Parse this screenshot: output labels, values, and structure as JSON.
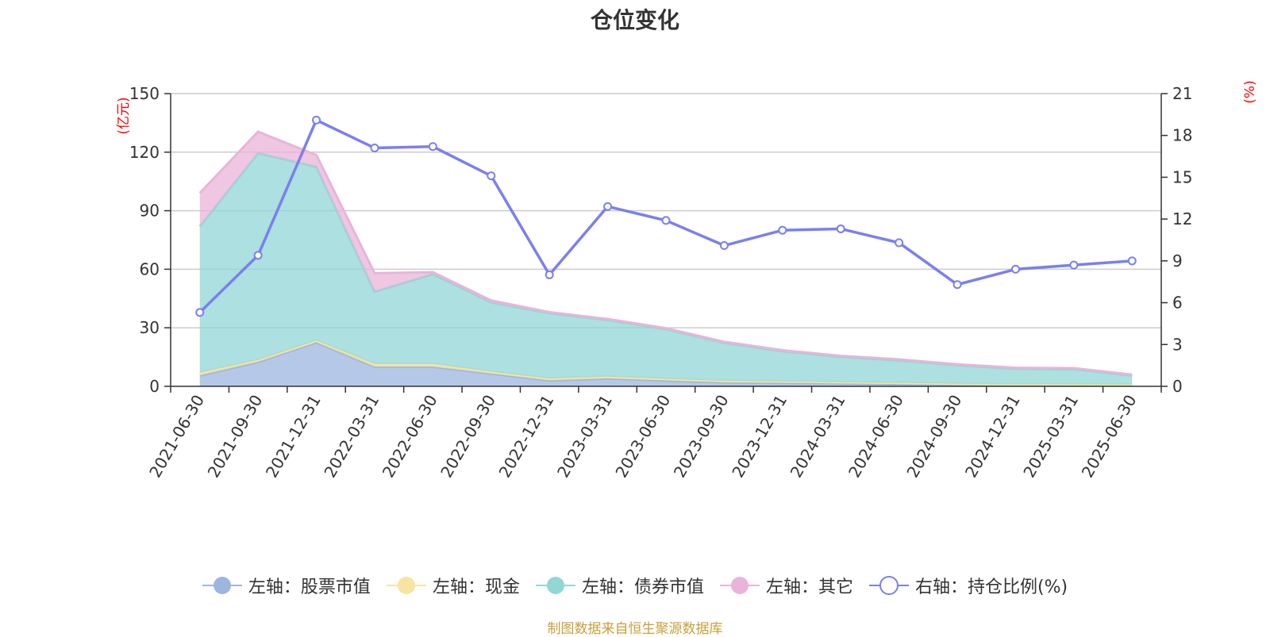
{
  "title": "仓位变化",
  "source_note": "制图数据来自恒生聚源数据库",
  "chart_data": {
    "type": "area",
    "categories": [
      "2021-06-30",
      "2021-09-30",
      "2021-12-31",
      "2022-03-31",
      "2022-06-30",
      "2022-09-30",
      "2022-12-31",
      "2023-03-31",
      "2023-06-30",
      "2023-09-30",
      "2023-12-31",
      "2024-03-31",
      "2024-06-30",
      "2024-09-30",
      "2024-12-31",
      "2025-03-31",
      "2025-06-30"
    ],
    "y_left": {
      "unit": "(亿元)",
      "min": 0,
      "max": 150,
      "ticks": [
        0,
        30,
        60,
        90,
        120,
        150
      ]
    },
    "y_right": {
      "unit": "(%)",
      "min": 0,
      "max": 21,
      "ticks": [
        0,
        3,
        6,
        9,
        12,
        15,
        18,
        21
      ]
    },
    "grid": true,
    "legend_position": "bottom",
    "series": [
      {
        "name": "左轴：股票市值",
        "axis": "left",
        "kind": "stacked-area",
        "color": "#9db6e0",
        "values": [
          5.5,
          12.5,
          22.5,
          10.0,
          10.0,
          6.5,
          3.0,
          4.0,
          3.0,
          2.0,
          1.8,
          1.5,
          1.2,
          0.8,
          0.6,
          0.6,
          0.5
        ]
      },
      {
        "name": "左轴：现金",
        "axis": "left",
        "kind": "stacked-area",
        "color": "#f7e4a0",
        "values": [
          1.5,
          1.0,
          1.0,
          1.5,
          1.5,
          1.0,
          1.0,
          1.0,
          0.8,
          0.8,
          0.7,
          0.6,
          0.6,
          0.5,
          0.4,
          0.4,
          0.4
        ]
      },
      {
        "name": "左轴：债券市值",
        "axis": "left",
        "kind": "stacked-area",
        "color": "#92d6d6",
        "values": [
          75.0,
          106.0,
          89.0,
          37.0,
          46.0,
          35.5,
          33.5,
          29.0,
          25.5,
          19.5,
          15.5,
          13.0,
          11.5,
          9.5,
          8.0,
          7.8,
          4.6
        ]
      },
      {
        "name": "左轴：其它",
        "axis": "left",
        "kind": "stacked-area",
        "color": "#e9b4d9",
        "values": [
          17.0,
          11.0,
          6.0,
          9.5,
          1.0,
          1.0,
          0.5,
          0.5,
          0.5,
          0.5,
          0.5,
          0.5,
          0.5,
          0.5,
          0.5,
          0.5,
          0.5
        ]
      },
      {
        "name": "右轴：持仓比例(%)",
        "axis": "right",
        "kind": "line",
        "color": "#7b7ff0",
        "values": [
          5.3,
          9.4,
          19.1,
          17.1,
          17.2,
          15.1,
          8.0,
          12.9,
          11.9,
          10.1,
          11.2,
          11.3,
          10.3,
          7.3,
          8.4,
          8.7,
          9.0
        ]
      }
    ]
  }
}
